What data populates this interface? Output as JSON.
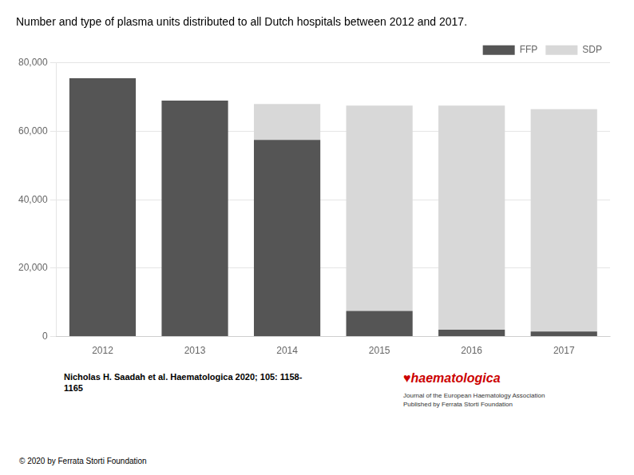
{
  "chart_data": {
    "type": "bar",
    "title": "Number and type of plasma units distributed to all Dutch hospitals between 2012 and 2017.",
    "categories": [
      "2012",
      "2013",
      "2014",
      "2015",
      "2016",
      "2017"
    ],
    "series": [
      {
        "name": "FFP",
        "color": "#555555",
        "values": [
          75500,
          69000,
          57500,
          7500,
          2000,
          1500
        ]
      },
      {
        "name": "SDP",
        "color": "#d8d8d8",
        "values": [
          0,
          0,
          10500,
          60000,
          65500,
          65000
        ]
      }
    ],
    "stacked": true,
    "ylim": [
      0,
      80000
    ],
    "yticks": [
      0,
      {
        "value": 20000,
        "label": "20,000"
      },
      {
        "value": 40000,
        "label": "40,000"
      },
      {
        "value": 60000,
        "label": "60,000"
      },
      {
        "value": 80000,
        "label": "80,000"
      }
    ],
    "grid": true,
    "legend": "upper right",
    "annotations": [
      [
        "Nicholas H. Saadah et al. Haematologica 2020; 105: 1158-",
        "1165"
      ],
      [
        "© 2020 by Ferrata Storti Foundation"
      ],
      [
        "♥haematologica"
      ],
      [
        "Journal of the European Haematology Association",
        "Published by Ferrata Storti Foundation"
      ]
    ]
  }
}
